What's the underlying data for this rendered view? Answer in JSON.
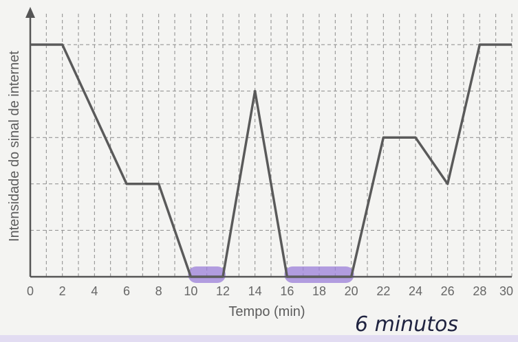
{
  "chart_data": {
    "type": "line",
    "title": "",
    "xlabel": "Tempo (min)",
    "ylabel": "Intensidade do sinal de internet",
    "xlim": [
      0,
      30
    ],
    "ylim": [
      0,
      5
    ],
    "grid": true,
    "x_ticks": [
      "0",
      "2",
      "4",
      "6",
      "8",
      "10",
      "12",
      "14",
      "16",
      "18",
      "20",
      "22",
      "24",
      "26",
      "28",
      "30"
    ],
    "x": [
      0,
      2,
      6,
      8,
      10,
      12,
      14,
      16,
      20,
      22,
      24,
      26,
      28,
      30
    ],
    "y": [
      5,
      5,
      2,
      2,
      0,
      0,
      4,
      0,
      0,
      3,
      3,
      2,
      5,
      5
    ],
    "highlighted_ranges": [
      [
        10,
        12
      ],
      [
        16,
        20
      ]
    ],
    "highlight_color": "#9b7fd8",
    "annotation": "6 minutos"
  }
}
